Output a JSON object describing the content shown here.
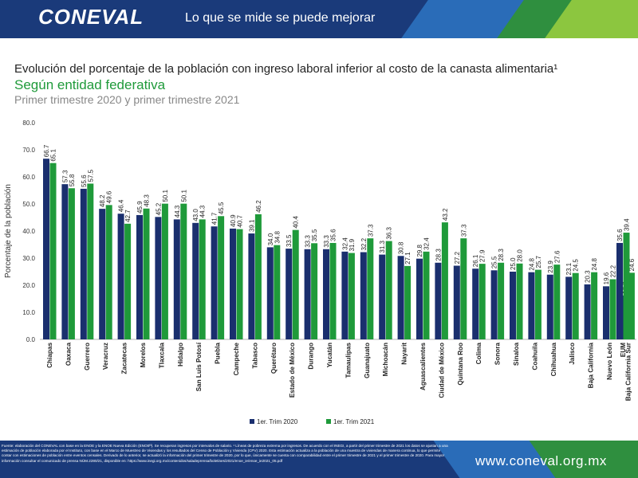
{
  "header": {
    "logo": "CONEVAL",
    "tagline": "Lo que se mide se puede mejorar"
  },
  "title": "Evolución del porcentaje de la población con ingreso laboral inferior al costo de la canasta alimentaria¹",
  "subtitle": "Según entidad federativa",
  "subtitle2": "Primer trimestre 2020 y primer trimestre 2021",
  "colors": {
    "header": "#1a3a7a",
    "series1": "#1a2f6e",
    "series2": "#1f9a3a",
    "subtitle": "#1f9a3a"
  },
  "chart_data": {
    "type": "bar",
    "ylabel": "Porcentaje de la población",
    "ylim": [
      0,
      80
    ],
    "yticks": [
      "0.0",
      "10.0",
      "20.0",
      "30.0",
      "40.0",
      "50.0",
      "60.0",
      "70.0",
      "80.0"
    ],
    "categories": [
      "Chiapas",
      "Oaxaca",
      "Guerrero",
      "Veracruz",
      "Zacatecas",
      "Morelos",
      "Tlaxcala",
      "Hidalgo",
      "San Luis Potosí",
      "Puebla",
      "Campeche",
      "Tabasco",
      "Querétaro",
      "Estado de México",
      "Durango",
      "Yucatán",
      "Tamaulipas",
      "Guanajuato",
      "Michoacán",
      "Nayarit",
      "Aguascalientes",
      "Ciudad de México",
      "Quintana Roo",
      "Colima",
      "Sonora",
      "Sinaloa",
      "Coahuila",
      "Chihuahua",
      "Jalisco",
      "Baja California",
      "Nuevo León",
      "Baja California Sur",
      "EUM"
    ],
    "series": [
      {
        "name": "1er. Trim 2020",
        "values": [
          66.7,
          57.3,
          55.6,
          48.2,
          46.4,
          45.9,
          45.2,
          44.3,
          43.0,
          41.7,
          40.9,
          39.1,
          34.0,
          33.5,
          33.3,
          33.3,
          32.4,
          32.2,
          31.3,
          30.8,
          29.8,
          28.3,
          27.2,
          26.1,
          25.5,
          25.0,
          24.8,
          23.9,
          23.1,
          20.3,
          19.6,
          16.2,
          35.6
        ]
      },
      {
        "name": "1er. Trim 2021",
        "values": [
          65.1,
          55.8,
          57.5,
          49.6,
          42.7,
          48.3,
          50.1,
          50.1,
          44.3,
          45.5,
          40.7,
          46.2,
          34.8,
          40.4,
          35.5,
          35.6,
          31.9,
          37.3,
          36.3,
          27.1,
          32.4,
          43.2,
          37.3,
          27.9,
          28.3,
          28.0,
          25.7,
          27.6,
          24.5,
          24.8,
          22.2,
          24.6,
          39.4
        ]
      }
    ],
    "legend": "bottom-center"
  },
  "footer": {
    "note": "Fuente: elaboración del CONEVAL con base en la ENOE y la ENOE Nueva Edición (ENOEᴺ). Se recuperan ingresos por intervalos de salario. ¹ Líneas de pobreza extrema por ingresos. De acuerdo con el INEGI, a partir del primer trimestre de 2021 los datos se ajustan a una estimación de población elaborada por el Instituto, con base en el Marco de Muestreo de Viviendas y los resultados del Censo de Población y Vivienda (CPV) 2020. Esta estimación actualiza a la población de una muestra de viviendas de manera continua, lo que permite contar con estimaciones de población entre eventos censales. Derivado de lo anterior, se actualizó la información del primer trimestre de 2020, por lo que, únicamente se cuenta con comparabilidad entre el primer trimestre de 2021 y el primer trimestre de 2020. Para mayor información consultar el comunicado de prensa NÚM.2280/21, disponible en: https://www.inegi.org.mx/contenidos/saladeprensa/boletines/2021/enoe_ie/enoe_ie2021_05.pdf",
    "website": "www.coneval.org.mx"
  }
}
